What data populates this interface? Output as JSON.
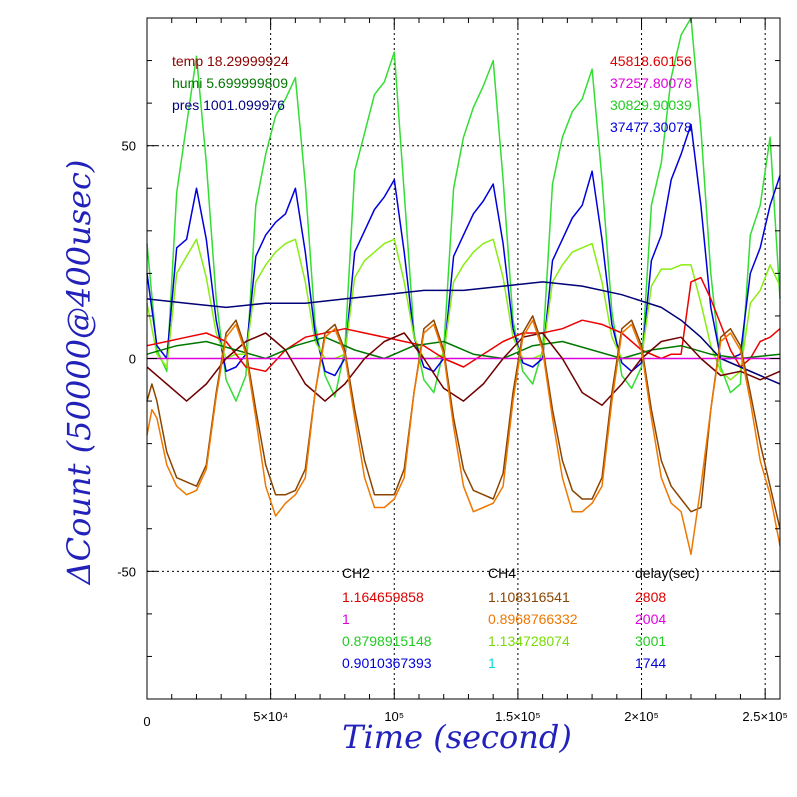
{
  "chart_data": {
    "type": "line",
    "xlabel": "Time (second)",
    "ylabel": "ΔCount (50000@400usec)",
    "xlim": [
      0,
      256000
    ],
    "ylim": [
      -80,
      80
    ],
    "grid": true,
    "x_ticks": [
      {
        "value": 50000,
        "label": "5×10⁴"
      },
      {
        "value": 100000,
        "label": "10⁵"
      },
      {
        "value": 150000,
        "label": "1.5×10⁵"
      },
      {
        "value": 200000,
        "label": "2×10⁵"
      },
      {
        "value": 250000,
        "label": "2.5×10⁵"
      }
    ],
    "x_origin_label": "0",
    "y_ticks": [
      {
        "value": 50,
        "label": "50"
      },
      {
        "value": 0,
        "label": "0"
      },
      {
        "value": -50,
        "label": "-50"
      }
    ],
    "env": [
      {
        "text": "temp 18.29999924",
        "color": "#8b0000"
      },
      {
        "text": "humi 5.699999809",
        "color": "#007700"
      },
      {
        "text": "pres 1001.099976",
        "color": "#000080"
      }
    ],
    "right_values": [
      {
        "text": "45818.60156",
        "color": "#dd0000"
      },
      {
        "text": "37257.80078",
        "color": "#dd00dd"
      },
      {
        "text": "30829.90039",
        "color": "#22cc22"
      },
      {
        "text": "37477.30078",
        "color": "#0000dd"
      }
    ],
    "table": {
      "headers": [
        "CH2",
        "CH4",
        "delay(sec)"
      ],
      "ch2": [
        {
          "text": "1.164659858",
          "color": "#dd0000"
        },
        {
          "text": "1",
          "color": "#dd00dd"
        },
        {
          "text": "0.8798915148",
          "color": "#22cc22"
        },
        {
          "text": "0.9010367393",
          "color": "#0000dd"
        }
      ],
      "ch4": [
        {
          "text": "1.108316541",
          "color": "#8b4500"
        },
        {
          "text": "0.8968766332",
          "color": "#ee7700"
        },
        {
          "text": "1.134728074",
          "color": "#77dd00"
        },
        {
          "text": "1",
          "color": "#00dddd"
        }
      ],
      "delay": [
        {
          "text": "2808",
          "color": "#dd0000"
        },
        {
          "text": "2004",
          "color": "#dd00dd"
        },
        {
          "text": "3001",
          "color": "#22cc22"
        },
        {
          "text": "1744",
          "color": "#0000dd"
        }
      ]
    },
    "series": [
      {
        "color": "#33dd33",
        "x": [
          0,
          4000,
          8000,
          12000,
          16000,
          20000,
          24000,
          28000,
          32000,
          36000,
          40000,
          44000,
          48000,
          52000,
          56000,
          60000,
          64000,
          68000,
          72000,
          76000,
          80000,
          84000,
          88000,
          92000,
          96000,
          100000,
          104000,
          108000,
          112000,
          116000,
          120000,
          124000,
          128000,
          132000,
          136000,
          140000,
          144000,
          148000,
          152000,
          156000,
          160000,
          164000,
          168000,
          172000,
          176000,
          180000,
          184000,
          188000,
          192000,
          196000,
          200000,
          204000,
          208000,
          212000,
          216000,
          220000,
          224000,
          228000,
          232000,
          236000,
          240000,
          244000,
          248000,
          252000,
          256000
        ],
        "values": [
          27,
          2,
          -3,
          39,
          55,
          71,
          46,
          14,
          -5,
          -10,
          -4,
          36,
          48,
          57,
          61,
          66,
          41,
          8,
          -4,
          -9,
          2,
          44,
          53,
          62,
          65,
          72,
          39,
          6,
          -5,
          -8,
          2,
          40,
          52,
          59,
          64,
          70,
          42,
          9,
          -3,
          -6,
          2,
          41,
          52,
          58,
          61,
          68,
          42,
          11,
          -4,
          -7,
          -2,
          36,
          46,
          66,
          76,
          80,
          54,
          20,
          -2,
          -8,
          -6,
          29,
          36,
          52,
          14
        ]
      },
      {
        "color": "#0000dd",
        "x": [
          0,
          4000,
          8000,
          12000,
          16000,
          20000,
          24000,
          28000,
          32000,
          36000,
          40000,
          44000,
          48000,
          52000,
          56000,
          60000,
          64000,
          68000,
          72000,
          76000,
          80000,
          84000,
          88000,
          92000,
          96000,
          100000,
          104000,
          108000,
          112000,
          116000,
          120000,
          124000,
          128000,
          132000,
          136000,
          140000,
          144000,
          148000,
          152000,
          156000,
          160000,
          164000,
          168000,
          172000,
          176000,
          180000,
          184000,
          188000,
          192000,
          196000,
          200000,
          204000,
          208000,
          212000,
          216000,
          220000,
          224000,
          228000,
          232000,
          236000,
          240000,
          244000,
          248000,
          252000,
          256000
        ],
        "values": [
          20,
          3,
          0,
          26,
          28,
          40,
          28,
          9,
          -3,
          -2,
          1,
          24,
          29,
          32,
          34,
          40,
          25,
          6,
          -3,
          -4,
          0,
          25,
          30,
          35,
          38,
          42,
          25,
          5,
          -2,
          -3,
          0,
          24,
          29,
          34,
          37,
          41,
          27,
          7,
          -1,
          -2,
          0,
          23,
          28,
          33,
          36,
          44,
          28,
          8,
          -1,
          -3,
          -1,
          23,
          29,
          42,
          48,
          55,
          36,
          12,
          0,
          0,
          1,
          20,
          26,
          36,
          43
        ]
      },
      {
        "color": "#88ee11",
        "x": [
          0,
          4000,
          8000,
          12000,
          16000,
          20000,
          24000,
          28000,
          32000,
          36000,
          40000,
          44000,
          48000,
          52000,
          56000,
          60000,
          64000,
          68000,
          72000,
          76000,
          80000,
          84000,
          88000,
          92000,
          96000,
          100000,
          104000,
          108000,
          112000,
          116000,
          120000,
          124000,
          128000,
          132000,
          136000,
          140000,
          144000,
          148000,
          152000,
          156000,
          160000,
          164000,
          168000,
          172000,
          176000,
          180000,
          184000,
          188000,
          192000,
          196000,
          200000,
          204000,
          208000,
          212000,
          216000,
          220000,
          224000,
          228000,
          232000,
          236000,
          240000,
          244000,
          248000,
          252000,
          256000
        ],
        "values": [
          13,
          1,
          -2,
          20,
          24,
          28,
          19,
          6,
          0,
          1,
          1,
          18,
          22,
          25,
          27,
          28,
          18,
          4,
          0,
          0,
          1,
          19,
          23,
          25,
          27,
          28,
          18,
          5,
          0,
          0,
          1,
          18,
          22,
          25,
          27,
          28,
          19,
          5,
          0,
          0,
          1,
          18,
          22,
          25,
          26,
          27,
          18,
          5,
          0,
          0,
          0,
          17,
          21,
          21,
          22,
          22,
          13,
          3,
          -3,
          -5,
          -3,
          13,
          16,
          22,
          17
        ]
      },
      {
        "color": "#ee0000",
        "x": [
          0,
          8000,
          16000,
          24000,
          32000,
          40000,
          48000,
          56000,
          64000,
          72000,
          80000,
          88000,
          96000,
          104000,
          112000,
          120000,
          128000,
          136000,
          144000,
          152000,
          160000,
          168000,
          176000,
          184000,
          192000,
          200000,
          208000,
          212000,
          216000,
          220000,
          224000,
          228000,
          232000,
          236000,
          240000,
          244000,
          248000,
          252000,
          256000
        ],
        "values": [
          3,
          4,
          5,
          6,
          4,
          -2,
          -3,
          2,
          5,
          6,
          7,
          6,
          5,
          4,
          3,
          0,
          -2,
          1,
          4,
          6,
          6,
          7,
          9,
          8,
          6,
          2,
          0,
          1,
          1,
          18,
          19,
          14,
          8,
          2,
          -2,
          0,
          4,
          5,
          7
        ]
      },
      {
        "color": "#000077",
        "x": [
          0,
          16000,
          32000,
          48000,
          64000,
          80000,
          96000,
          112000,
          128000,
          144000,
          160000,
          176000,
          192000,
          208000,
          216000,
          224000,
          232000,
          240000,
          248000,
          256000
        ],
        "values": [
          14,
          13,
          12,
          13,
          13,
          14,
          15,
          16,
          16,
          17,
          18,
          17,
          15,
          12,
          9,
          5,
          0,
          -2,
          -4,
          -6
        ]
      },
      {
        "color": "#007700",
        "x": [
          0,
          12000,
          24000,
          36000,
          48000,
          60000,
          72000,
          84000,
          96000,
          108000,
          120000,
          132000,
          144000,
          156000,
          168000,
          180000,
          192000,
          204000,
          216000,
          228000,
          240000,
          256000
        ],
        "values": [
          1,
          3,
          4,
          2,
          0,
          3,
          5,
          2,
          0,
          3,
          4,
          1,
          0,
          3,
          4,
          2,
          0,
          2,
          3,
          1,
          0,
          1
        ]
      },
      {
        "color": "#dd00dd",
        "x": [
          0,
          256000
        ],
        "values": [
          0,
          0
        ]
      },
      {
        "color": "#700000",
        "x": [
          0,
          8000,
          16000,
          24000,
          32000,
          40000,
          48000,
          56000,
          64000,
          72000,
          80000,
          88000,
          96000,
          104000,
          112000,
          120000,
          128000,
          136000,
          144000,
          152000,
          160000,
          168000,
          176000,
          184000,
          192000,
          200000,
          208000,
          216000,
          224000,
          232000,
          240000,
          248000,
          256000
        ],
        "values": [
          -2,
          -6,
          -10,
          -6,
          0,
          4,
          6,
          2,
          -6,
          -10,
          -6,
          0,
          4,
          6,
          0,
          -7,
          -10,
          -6,
          0,
          5,
          6,
          0,
          -8,
          -11,
          -6,
          0,
          4,
          5,
          0,
          -4,
          -3,
          -5,
          -3
        ]
      },
      {
        "color": "#8b4500",
        "x": [
          0,
          2000,
          4000,
          8000,
          12000,
          16000,
          20000,
          24000,
          28000,
          32000,
          36000,
          40000,
          44000,
          48000,
          52000,
          56000,
          60000,
          64000,
          68000,
          72000,
          76000,
          80000,
          84000,
          88000,
          92000,
          96000,
          100000,
          104000,
          108000,
          112000,
          116000,
          120000,
          124000,
          128000,
          132000,
          136000,
          140000,
          144000,
          148000,
          152000,
          156000,
          160000,
          164000,
          168000,
          172000,
          176000,
          180000,
          184000,
          188000,
          192000,
          196000,
          200000,
          204000,
          208000,
          212000,
          216000,
          220000,
          224000,
          228000,
          232000,
          236000,
          240000,
          244000,
          248000,
          252000,
          256000
        ],
        "values": [
          -10,
          -6,
          -10,
          -22,
          -28,
          -29,
          -30,
          -25,
          -8,
          6,
          9,
          2,
          -12,
          -25,
          -32,
          -32,
          -31,
          -26,
          -8,
          6,
          8,
          2,
          -12,
          -24,
          -32,
          -32,
          -32,
          -26,
          -8,
          7,
          9,
          2,
          -14,
          -26,
          -31,
          -32,
          -33,
          -27,
          -8,
          6,
          10,
          3,
          -12,
          -24,
          -31,
          -33,
          -33,
          -28,
          -8,
          7,
          9,
          3,
          -12,
          -24,
          -30,
          -33,
          -36,
          -35,
          -12,
          5,
          7,
          3,
          -8,
          -20,
          -30,
          -40
        ]
      },
      {
        "color": "#ee7700",
        "x": [
          0,
          2000,
          4000,
          8000,
          12000,
          16000,
          20000,
          24000,
          28000,
          32000,
          36000,
          40000,
          44000,
          48000,
          52000,
          56000,
          60000,
          64000,
          68000,
          72000,
          76000,
          80000,
          84000,
          88000,
          92000,
          96000,
          100000,
          104000,
          108000,
          112000,
          116000,
          120000,
          124000,
          128000,
          132000,
          136000,
          140000,
          144000,
          148000,
          152000,
          156000,
          160000,
          164000,
          168000,
          172000,
          176000,
          180000,
          184000,
          188000,
          192000,
          196000,
          200000,
          204000,
          208000,
          212000,
          216000,
          220000,
          224000,
          228000,
          232000,
          236000,
          240000,
          244000,
          248000,
          252000,
          256000
        ],
        "values": [
          -18,
          -12,
          -14,
          -25,
          -30,
          -32,
          -31,
          -26,
          -9,
          5,
          8,
          1,
          -14,
          -30,
          -37,
          -34,
          -32,
          -28,
          -8,
          5,
          7,
          1,
          -14,
          -28,
          -35,
          -35,
          -33,
          -28,
          -8,
          6,
          8,
          1,
          -16,
          -30,
          -36,
          -35,
          -34,
          -30,
          -10,
          5,
          9,
          2,
          -14,
          -28,
          -36,
          -36,
          -34,
          -30,
          -10,
          6,
          8,
          2,
          -14,
          -28,
          -34,
          -36,
          -46,
          -30,
          -12,
          4,
          6,
          2,
          -10,
          -24,
          -32,
          -44
        ]
      }
    ]
  }
}
